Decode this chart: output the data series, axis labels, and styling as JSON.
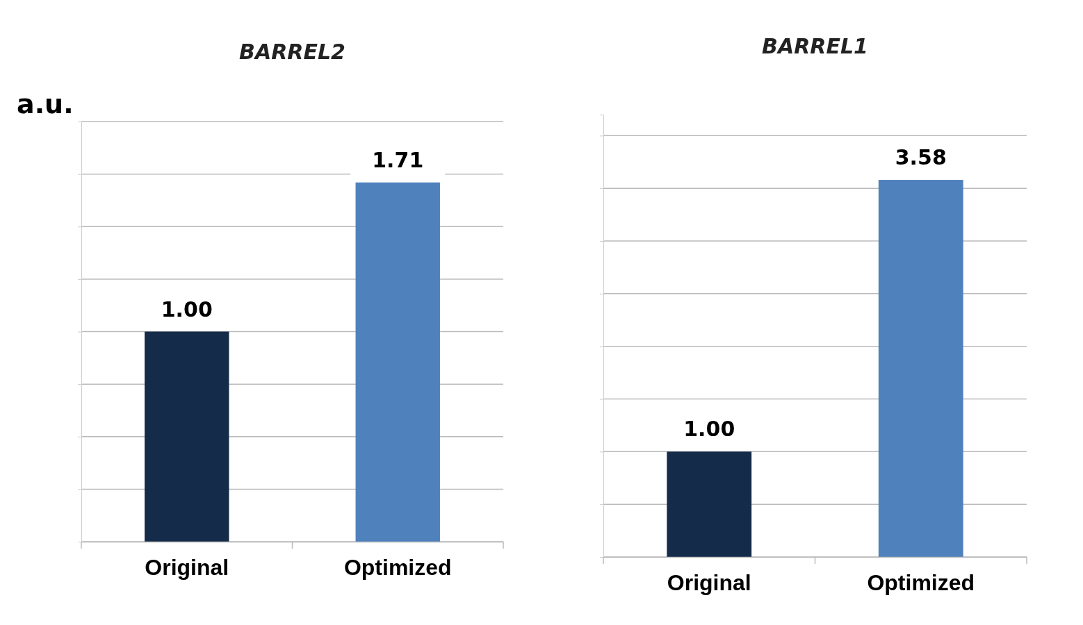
{
  "chart_data": [
    {
      "type": "bar",
      "title": "BARREL2",
      "ylabel": "a.u.",
      "categories": [
        "Original",
        "Optimized"
      ],
      "values": [
        1.0,
        1.71
      ],
      "value_labels": [
        "1.00",
        "1.71"
      ],
      "colors": [
        "#152b4a",
        "#4f81bd"
      ],
      "ylim": [
        0,
        2
      ],
      "yticks": [
        {
          "value": 0,
          "label": null
        },
        {
          "value": 0.25,
          "label": null
        },
        {
          "value": 0.5,
          "label": null
        },
        {
          "value": 0.75,
          "label": null
        },
        {
          "value": 1,
          "label": null
        },
        {
          "value": 1.25,
          "label": null
        },
        {
          "value": 1.5,
          "label": null
        },
        {
          "value": 1.75,
          "label": null
        },
        {
          "value": 2,
          "label": null
        }
      ],
      "grid": "y"
    },
    {
      "type": "bar",
      "title": "BARREL1",
      "categories": [
        "Original",
        "Optimized"
      ],
      "values": [
        1.0,
        3.58
      ],
      "value_labels": [
        "1.00",
        "3.58"
      ],
      "colors": [
        "#152b4a",
        "#4f81bd"
      ],
      "ylim": [
        0,
        4.2
      ],
      "yticks": [
        {
          "value": 0,
          "label": null
        },
        {
          "value": 0.5,
          "label": null
        },
        {
          "value": 1,
          "label": null
        },
        {
          "value": 1.5,
          "label": null
        },
        {
          "value": 2,
          "label": null
        },
        {
          "value": 2.5,
          "label": null
        },
        {
          "value": 3,
          "label": null
        },
        {
          "value": 3.5,
          "label": null
        },
        {
          "value": 4,
          "label": null
        }
      ],
      "grid": "y"
    }
  ]
}
